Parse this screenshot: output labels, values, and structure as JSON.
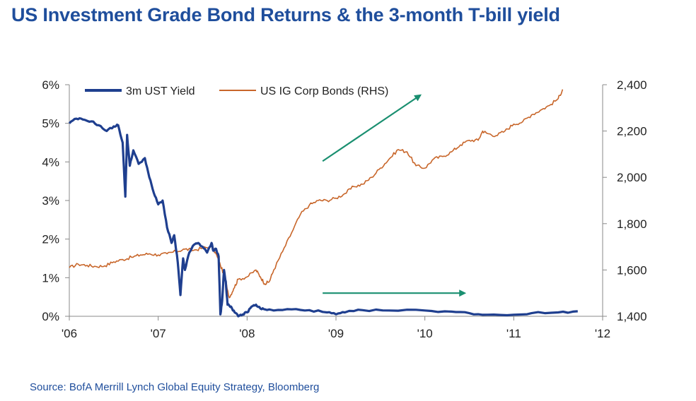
{
  "title": "US Investment Grade Bond Returns & the 3-month T-bill yield",
  "source": "Source: BofA Merrill Lynch Global Equity Strategy, Bloomberg",
  "chart_data": {
    "type": "line",
    "xlabel": "",
    "ylabel": "",
    "x_ticks": [
      "'06",
      "'07",
      "'08",
      "'09",
      "'10",
      "'11",
      "'12"
    ],
    "x_range": [
      2006.0,
      2012.0
    ],
    "y_left": {
      "range": [
        0,
        6
      ],
      "ticks": [
        "0%",
        "1%",
        "2%",
        "3%",
        "4%",
        "5%",
        "6%"
      ]
    },
    "y_right": {
      "range": [
        1400,
        2400
      ],
      "ticks": [
        "1,400",
        "1,600",
        "1,800",
        "2,000",
        "2,200",
        "2,400"
      ]
    },
    "legend": {
      "placement": "top-left",
      "entries": [
        "3m UST Yield",
        "US IG Corp Bonds (RHS)"
      ]
    },
    "colors": {
      "yield": "#1f3f8f",
      "bonds": "#c8662a",
      "arrow": "#1a8f70",
      "axis": "#888888"
    },
    "series": [
      {
        "name": "3m UST Yield",
        "axis": "left",
        "x": [
          2006.0,
          2006.08,
          2006.15,
          2006.25,
          2006.33,
          2006.42,
          2006.5,
          2006.55,
          2006.6,
          2006.63,
          2006.65,
          2006.68,
          2006.72,
          2006.78,
          2006.85,
          2006.9,
          2006.95,
          2007.0,
          2007.05,
          2007.1,
          2007.15,
          2007.18,
          2007.22,
          2007.25,
          2007.28,
          2007.3,
          2007.35,
          2007.4,
          2007.45,
          2007.5,
          2007.55,
          2007.6,
          2007.62,
          2007.65,
          2007.68,
          2007.7,
          2007.72,
          2007.74,
          2007.76,
          2007.78,
          2007.82,
          2007.86,
          2007.9,
          2007.95,
          2008.0,
          2008.05,
          2008.1,
          2008.15,
          2008.2,
          2008.3,
          2008.5,
          2008.7,
          2008.9,
          2009.0,
          2009.1,
          2009.3,
          2009.6,
          2010.0,
          2010.3,
          2010.5,
          2010.7,
          2011.0,
          2011.2,
          2011.5,
          2011.72
        ],
        "values": [
          5.0,
          5.12,
          5.1,
          5.05,
          4.95,
          4.8,
          4.92,
          4.95,
          4.5,
          3.1,
          4.7,
          3.9,
          4.3,
          3.95,
          4.1,
          3.6,
          3.2,
          2.9,
          3.0,
          2.3,
          1.9,
          2.1,
          1.4,
          0.55,
          1.5,
          1.2,
          1.65,
          1.85,
          1.9,
          1.8,
          1.65,
          1.9,
          1.7,
          1.75,
          1.55,
          0.05,
          0.4,
          1.2,
          0.9,
          0.3,
          0.25,
          0.1,
          0.0,
          0.05,
          0.1,
          0.25,
          0.3,
          0.2,
          0.18,
          0.15,
          0.18,
          0.16,
          0.1,
          0.05,
          0.1,
          0.16,
          0.15,
          0.15,
          0.12,
          0.08,
          0.04,
          0.04,
          0.08,
          0.1,
          0.13
        ]
      },
      {
        "name": "US IG Corp Bonds (RHS)",
        "axis": "right",
        "x": [
          2006.0,
          2006.1,
          2006.2,
          2006.3,
          2006.4,
          2006.5,
          2006.6,
          2006.7,
          2006.8,
          2006.9,
          2007.0,
          2007.1,
          2007.2,
          2007.3,
          2007.4,
          2007.5,
          2007.6,
          2007.65,
          2007.7,
          2007.75,
          2007.8,
          2007.85,
          2007.9,
          2008.0,
          2008.1,
          2008.15,
          2008.2,
          2008.25,
          2008.3,
          2008.4,
          2008.5,
          2008.6,
          2008.7,
          2008.8,
          2008.9,
          2009.0,
          2009.1,
          2009.2,
          2009.3,
          2009.4,
          2009.5,
          2009.6,
          2009.7,
          2009.8,
          2009.9,
          2010.0,
          2010.1,
          2010.2,
          2010.3,
          2010.4,
          2010.5,
          2010.6,
          2010.65,
          2010.7,
          2010.8,
          2010.9,
          2011.0,
          2011.1,
          2011.2,
          2011.3,
          2011.4,
          2011.5,
          2011.55
        ],
        "values": [
          1610,
          1625,
          1620,
          1615,
          1618,
          1635,
          1645,
          1655,
          1665,
          1670,
          1665,
          1670,
          1680,
          1690,
          1685,
          1695,
          1700,
          1670,
          1620,
          1570,
          1480,
          1520,
          1560,
          1570,
          1600,
          1570,
          1540,
          1550,
          1600,
          1680,
          1760,
          1840,
          1880,
          1900,
          1900,
          1910,
          1930,
          1960,
          1970,
          2000,
          2040,
          2080,
          2120,
          2110,
          2050,
          2040,
          2080,
          2090,
          2110,
          2140,
          2160,
          2160,
          2200,
          2190,
          2180,
          2200,
          2230,
          2240,
          2270,
          2290,
          2310,
          2340,
          2380
        ]
      }
    ],
    "annotations": [
      {
        "type": "arrow",
        "description": "rising trend",
        "from": [
          2008.85,
          2070
        ],
        "to": [
          2009.95,
          2355
        ]
      },
      {
        "type": "arrow",
        "description": "flat trend",
        "from": [
          2008.85,
          1500
        ],
        "to": [
          2010.45,
          1500
        ]
      }
    ]
  }
}
